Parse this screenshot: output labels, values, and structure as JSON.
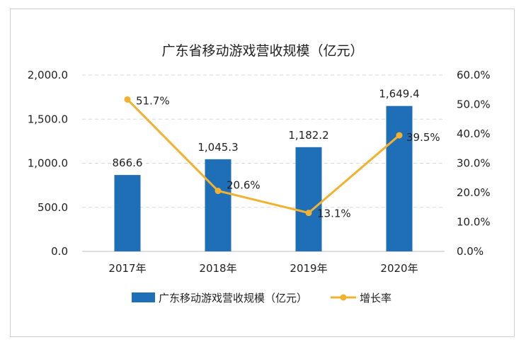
{
  "chart_data": {
    "type": "bar",
    "title": "广东省移动游戏营收规模（亿元）",
    "categories": [
      "2017年",
      "2018年",
      "2019年",
      "2020年"
    ],
    "series": [
      {
        "name": "广东移动游戏营收规模（亿元）",
        "type": "bar",
        "axis": "left",
        "values": [
          866.6,
          1045.3,
          1182.2,
          1649.4
        ],
        "labels": [
          "866.6",
          "1,045.3",
          "1,182.2",
          "1,649.4"
        ],
        "color": "#1f6fb8"
      },
      {
        "name": "增长率",
        "type": "line",
        "axis": "right",
        "values": [
          51.7,
          20.6,
          13.1,
          39.5
        ],
        "labels": [
          "51.7%",
          "20.6%",
          "13.1%",
          "39.5%"
        ],
        "color": "#f2b12e"
      }
    ],
    "left_axis": {
      "ylim": [
        0,
        2000
      ],
      "ticks": [
        0,
        500,
        1000,
        1500,
        2000
      ],
      "tick_labels": [
        "0.0",
        "500.0",
        "1,000.0",
        "1,500.0",
        "2,000.0"
      ]
    },
    "right_axis": {
      "ylim": [
        0,
        60
      ],
      "ticks": [
        0,
        10,
        20,
        30,
        40,
        50,
        60
      ],
      "tick_labels": [
        "0.0%",
        "10.0%",
        "20.0%",
        "30.0%",
        "40.0%",
        "50.0%",
        "60.0%"
      ]
    },
    "grid": true,
    "legend_position": "bottom"
  }
}
